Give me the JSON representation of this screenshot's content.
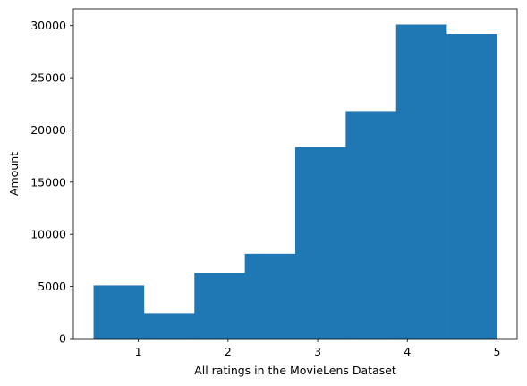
{
  "chart_data": {
    "type": "bar",
    "title": "",
    "xlabel": "All ratings in the MovieLens Dataset",
    "ylabel": "Amount",
    "bin_edges": [
      0.5,
      1.0625,
      1.625,
      2.1875,
      2.75,
      3.3125,
      3.875,
      4.4375,
      5.0
    ],
    "values": [
      5100,
      2450,
      6300,
      8150,
      18350,
      21800,
      30100,
      29200
    ],
    "xlim": [
      0.275,
      5.225
    ],
    "ylim": [
      0,
      31600
    ],
    "xticks": [
      1,
      2,
      3,
      4,
      5
    ],
    "yticks": [
      0,
      5000,
      10000,
      15000,
      20000,
      25000,
      30000
    ],
    "bar_color": "#1f77b4",
    "grid": false,
    "legend": "none"
  }
}
